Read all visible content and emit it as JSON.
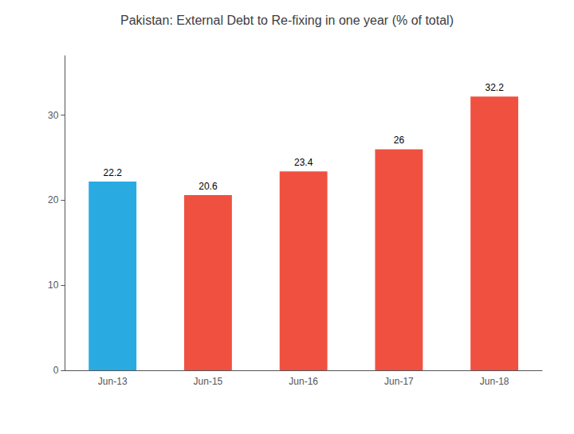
{
  "chart_data": {
    "type": "bar",
    "title": "Pakistan: External Debt to Re-fixing in one year (% of total)",
    "categories": [
      "Jun-13",
      "Jun-15",
      "Jun-16",
      "Jun-17",
      "Jun-18"
    ],
    "values": [
      22.2,
      20.6,
      23.4,
      26.0,
      32.2
    ],
    "colors": [
      "#29ABE2",
      "#F05040",
      "#F05040",
      "#F05040",
      "#F05040"
    ],
    "ylim": [
      0,
      37
    ],
    "yticks": [
      0,
      10,
      20,
      30
    ],
    "grid": false,
    "data_labels": true
  }
}
